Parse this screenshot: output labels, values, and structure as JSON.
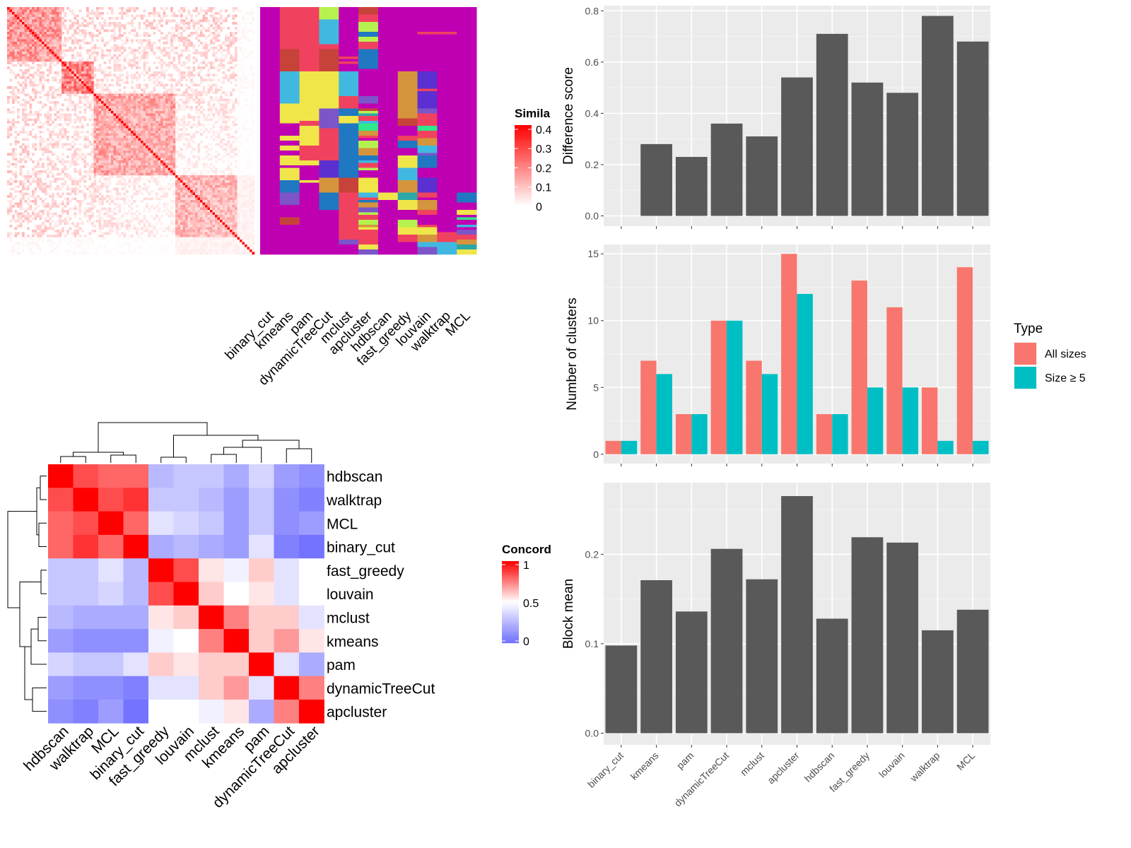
{
  "chart_data": [
    {
      "type": "heatmap",
      "panel": "item-similarity-heatmap-with-cluster-memberships",
      "n_items": 100,
      "legend": {
        "title": "Similarity",
        "visible_title": "Simila",
        "ticks": [
          "0.4",
          "0.3",
          "0.2",
          "0.1",
          "0"
        ],
        "range": [
          0,
          0.42
        ],
        "colors": [
          "#ffffff",
          "#ff0000"
        ]
      },
      "block_boundaries": [
        0,
        22,
        35,
        68,
        100
      ],
      "membership_columns": [
        "binary_cut",
        "kmeans",
        "pam",
        "dynamicTreeCut",
        "mclust",
        "apcluster",
        "hdbscan",
        "fast_greedy",
        "louvain",
        "walktrap",
        "MCL"
      ],
      "membership_segments": {
        "binary_cut": [
          [
            0,
            100,
            "#bf00b2"
          ]
        ],
        "kmeans": [
          [
            0,
            17,
            "#f0425f"
          ],
          [
            17,
            26,
            "#c7433a"
          ],
          [
            26,
            39,
            "#41b8e0"
          ],
          [
            39,
            47,
            "#f0e64a"
          ],
          [
            47,
            52,
            "#bf00b2"
          ],
          [
            52,
            54,
            "#f0e64a"
          ],
          [
            54,
            56,
            "#bf00b2"
          ],
          [
            56,
            58,
            "#f0e64a"
          ],
          [
            58,
            60,
            "#bf00b2"
          ],
          [
            60,
            64,
            "#f0e64a"
          ],
          [
            64,
            65,
            "#bf00b2"
          ],
          [
            65,
            70,
            "#f0e64a"
          ],
          [
            70,
            75,
            "#1f78c1"
          ],
          [
            75,
            80,
            "#7c55c9"
          ],
          [
            80,
            85,
            "#bf00b2"
          ],
          [
            85,
            88,
            "#c7433a"
          ],
          [
            88,
            100,
            "#bf00b2"
          ]
        ],
        "pam": [
          [
            0,
            26,
            "#f0425f"
          ],
          [
            26,
            46,
            "#f0e64a"
          ],
          [
            46,
            48,
            "#f0425f"
          ],
          [
            48,
            56,
            "#f0e64a"
          ],
          [
            56,
            62,
            "#f0425f"
          ],
          [
            62,
            64,
            "#f0e64a"
          ],
          [
            64,
            70,
            "#bf00b2"
          ],
          [
            70,
            71,
            "#f0e64a"
          ],
          [
            71,
            100,
            "#bf00b2"
          ]
        ],
        "dynamicTreeCut": [
          [
            0,
            5,
            "#b6f24f"
          ],
          [
            5,
            15,
            "#41b8e0"
          ],
          [
            15,
            17,
            "#f0425f"
          ],
          [
            17,
            26,
            "#c7433a"
          ],
          [
            26,
            41,
            "#f0e64a"
          ],
          [
            41,
            49,
            "#7c55c9"
          ],
          [
            49,
            62,
            "#f0425f"
          ],
          [
            62,
            69,
            "#5c2fd1"
          ],
          [
            69,
            75,
            "#d4953c"
          ],
          [
            75,
            82,
            "#1f78c1"
          ],
          [
            82,
            100,
            "#bf00b2"
          ]
        ],
        "mclust": [
          [
            0,
            20,
            "#bf00b2"
          ],
          [
            20,
            21,
            "#f0425f"
          ],
          [
            21,
            22,
            "#bf00b2"
          ],
          [
            22,
            23,
            "#f0425f"
          ],
          [
            23,
            26,
            "#bf00b2"
          ],
          [
            26,
            36,
            "#41b8e0"
          ],
          [
            36,
            41,
            "#f0425f"
          ],
          [
            41,
            44,
            "#1f78c1"
          ],
          [
            44,
            47,
            "#f0e64a"
          ],
          [
            47,
            55,
            "#1f78c1"
          ],
          [
            55,
            69,
            "#1f78c1"
          ],
          [
            69,
            75,
            "#c7433a"
          ],
          [
            75,
            94,
            "#f0425f"
          ],
          [
            94,
            96,
            "#7c55c9"
          ],
          [
            96,
            100,
            "#bf00b2"
          ]
        ],
        "apcluster": [
          [
            0,
            3,
            "#c7433a"
          ],
          [
            3,
            6,
            "#f0425f"
          ],
          [
            6,
            10,
            "#b6f24f"
          ],
          [
            10,
            12,
            "#1f78c1"
          ],
          [
            12,
            14,
            "#b6f24f"
          ],
          [
            14,
            17,
            "#f0425f"
          ],
          [
            17,
            25,
            "#1f78c1"
          ],
          [
            25,
            36,
            "#bf00b2"
          ],
          [
            36,
            39,
            "#7c55c9"
          ],
          [
            39,
            41,
            "#bf00b2"
          ],
          [
            41,
            42,
            "#c7433a"
          ],
          [
            42,
            43,
            "#b6f24f"
          ],
          [
            43,
            44,
            "#2ca7a7"
          ],
          [
            44,
            46,
            "#f0425f"
          ],
          [
            46,
            47,
            "#41b8e0"
          ],
          [
            47,
            50,
            "#2ee88a"
          ],
          [
            50,
            52,
            "#d4953c"
          ],
          [
            52,
            53,
            "#f0425f"
          ],
          [
            53,
            54,
            "#bf00b2"
          ],
          [
            54,
            57,
            "#b6f24f"
          ],
          [
            57,
            60,
            "#d4953c"
          ],
          [
            60,
            62,
            "#1f78c1"
          ],
          [
            62,
            63,
            "#41b8e0"
          ],
          [
            63,
            65,
            "#f0425f"
          ],
          [
            65,
            66,
            "#b6f24f"
          ],
          [
            66,
            69,
            "#bf00b2"
          ],
          [
            69,
            75,
            "#f0e64a"
          ],
          [
            75,
            77,
            "#41b8e0"
          ],
          [
            77,
            78,
            "#f0425f"
          ],
          [
            78,
            79,
            "#1f78c1"
          ],
          [
            79,
            81,
            "#d4953c"
          ],
          [
            81,
            83,
            "#7c55c9"
          ],
          [
            83,
            84,
            "#b6f24f"
          ],
          [
            84,
            86,
            "#f0425f"
          ],
          [
            86,
            88,
            "#b6f24f"
          ],
          [
            88,
            89,
            "#d4953c"
          ],
          [
            89,
            90,
            "#f0e64a"
          ],
          [
            90,
            96,
            "#f0425f"
          ],
          [
            96,
            98,
            "#f0e64a"
          ],
          [
            98,
            100,
            "#7c55c9"
          ]
        ],
        "hdbscan": [
          [
            0,
            75,
            "#bf00b2"
          ],
          [
            75,
            78,
            "#f0e64a"
          ],
          [
            78,
            100,
            "#bf00b2"
          ]
        ],
        "fast_greedy": [
          [
            0,
            26,
            "#bf00b2"
          ],
          [
            26,
            45,
            "#d4953c"
          ],
          [
            45,
            48,
            "#c7433a"
          ],
          [
            48,
            52,
            "#bf00b2"
          ],
          [
            52,
            54,
            "#f0425f"
          ],
          [
            54,
            57,
            "#1f78c1"
          ],
          [
            57,
            60,
            "#bf00b2"
          ],
          [
            60,
            65,
            "#f0e64a"
          ],
          [
            65,
            70,
            "#41b8e0"
          ],
          [
            70,
            75,
            "#d4953c"
          ],
          [
            75,
            78,
            "#2ca7a7"
          ],
          [
            78,
            82,
            "#f0e64a"
          ],
          [
            82,
            86,
            "#bf00b2"
          ],
          [
            86,
            89,
            "#b6f24f"
          ],
          [
            89,
            92,
            "#f0e64a"
          ],
          [
            92,
            95,
            "#f0425f"
          ],
          [
            95,
            100,
            "#bf00b2"
          ]
        ],
        "louvain": [
          [
            0,
            10,
            "#bf00b2"
          ],
          [
            10,
            11,
            "#f0425f"
          ],
          [
            11,
            26,
            "#bf00b2"
          ],
          [
            26,
            33,
            "#5c2fd1"
          ],
          [
            33,
            34,
            "#f0425f"
          ],
          [
            34,
            41,
            "#5c2fd1"
          ],
          [
            41,
            43,
            "#7c55c9"
          ],
          [
            43,
            48,
            "#f0425f"
          ],
          [
            48,
            50,
            "#2ee88a"
          ],
          [
            50,
            53,
            "#f0425f"
          ],
          [
            53,
            56,
            "#d4953c"
          ],
          [
            56,
            59,
            "#41b8e0"
          ],
          [
            59,
            60,
            "#7c55c9"
          ],
          [
            60,
            65,
            "#1f78c1"
          ],
          [
            65,
            69,
            "#bf00b2"
          ],
          [
            69,
            75,
            "#5c2fd1"
          ],
          [
            75,
            77,
            "#f0425f"
          ],
          [
            77,
            78,
            "#bf00b2"
          ],
          [
            78,
            82,
            "#d4953c"
          ],
          [
            82,
            84,
            "#f0425f"
          ],
          [
            84,
            88,
            "#bf00b2"
          ],
          [
            88,
            89,
            "#f0425f"
          ],
          [
            89,
            92,
            "#f0e64a"
          ],
          [
            92,
            95,
            "#d4953c"
          ],
          [
            95,
            97,
            "#41b8e0"
          ],
          [
            97,
            100,
            "#7c55c9"
          ]
        ],
        "walktrap": [
          [
            0,
            10,
            "#bf00b2"
          ],
          [
            10,
            11,
            "#f0425f"
          ],
          [
            11,
            91,
            "#bf00b2"
          ],
          [
            91,
            95,
            "#f0425f"
          ],
          [
            95,
            100,
            "#41b8e0"
          ]
        ],
        "MCL": [
          [
            0,
            75,
            "#bf00b2"
          ],
          [
            75,
            79,
            "#1f78c1"
          ],
          [
            79,
            82,
            "#bf00b2"
          ],
          [
            82,
            84,
            "#f0e64a"
          ],
          [
            84,
            85,
            "#bf00b2"
          ],
          [
            85,
            86,
            "#2ee88a"
          ],
          [
            86,
            88,
            "#bf00b2"
          ],
          [
            88,
            89,
            "#41b8e0"
          ],
          [
            89,
            90,
            "#bf00b2"
          ],
          [
            90,
            92,
            "#7c55c9"
          ],
          [
            92,
            94,
            "#f0425f"
          ],
          [
            94,
            96,
            "#d4953c"
          ],
          [
            96,
            98,
            "#2ca7a7"
          ],
          [
            98,
            100,
            "#f0e64a"
          ]
        ]
      }
    },
    {
      "type": "heatmap",
      "panel": "method-concordance-heatmap",
      "rows": [
        "hdbscan",
        "walktrap",
        "MCL",
        "binary_cut",
        "fast_greedy",
        "louvain",
        "mclust",
        "kmeans",
        "pam",
        "dynamicTreeCut",
        "apcluster"
      ],
      "columns": [
        "hdbscan",
        "walktrap",
        "MCL",
        "binary_cut",
        "fast_greedy",
        "louvain",
        "mclust",
        "kmeans",
        "pam",
        "dynamicTreeCut",
        "apcluster"
      ],
      "values": [
        [
          1.0,
          0.85,
          0.8,
          0.8,
          0.25,
          0.3,
          0.3,
          0.2,
          0.35,
          0.15,
          0.1
        ],
        [
          0.85,
          1.0,
          0.85,
          0.9,
          0.3,
          0.3,
          0.25,
          0.15,
          0.3,
          0.1,
          0.05
        ],
        [
          0.8,
          0.85,
          1.0,
          0.8,
          0.4,
          0.35,
          0.3,
          0.15,
          0.3,
          0.1,
          0.15
        ],
        [
          0.8,
          0.9,
          0.8,
          1.0,
          0.2,
          0.25,
          0.2,
          0.15,
          0.4,
          0.05,
          0.0
        ],
        [
          0.3,
          0.3,
          0.4,
          0.25,
          1.0,
          0.85,
          0.55,
          0.45,
          0.6,
          0.4,
          0.5
        ],
        [
          0.3,
          0.3,
          0.35,
          0.25,
          0.85,
          1.0,
          0.6,
          0.5,
          0.55,
          0.4,
          0.5
        ],
        [
          0.25,
          0.2,
          0.2,
          0.2,
          0.55,
          0.6,
          1.0,
          0.75,
          0.6,
          0.6,
          0.4
        ],
        [
          0.15,
          0.1,
          0.1,
          0.1,
          0.45,
          0.5,
          0.75,
          1.0,
          0.6,
          0.7,
          0.55
        ],
        [
          0.35,
          0.3,
          0.3,
          0.4,
          0.6,
          0.55,
          0.6,
          0.6,
          1.0,
          0.4,
          0.2
        ],
        [
          0.15,
          0.1,
          0.1,
          0.05,
          0.4,
          0.4,
          0.6,
          0.7,
          0.4,
          1.0,
          0.75
        ],
        [
          0.1,
          0.05,
          0.15,
          0.0,
          0.5,
          0.5,
          0.45,
          0.55,
          0.2,
          0.75,
          1.0
        ]
      ],
      "legend": {
        "title": "Concordance",
        "visible_title": "Concord",
        "ticks": [
          "1",
          "0.5",
          "0"
        ],
        "colors": [
          "#0000ff",
          "#ffffff",
          "#ff0000"
        ]
      },
      "dendrogram": "hierarchical clustering of methods (rows and columns)"
    },
    {
      "type": "bar",
      "panel": "difference-score",
      "categories": [
        "binary_cut",
        "kmeans",
        "pam",
        "dynamicTreeCut",
        "mclust",
        "apcluster",
        "hdbscan",
        "fast_greedy",
        "louvain",
        "walktrap",
        "MCL"
      ],
      "values": [
        0.0,
        0.28,
        0.23,
        0.36,
        0.31,
        0.54,
        0.71,
        0.52,
        0.48,
        0.78,
        0.68
      ],
      "ylabel": "Difference score",
      "yticks": [
        "0.0",
        "0.2",
        "0.4",
        "0.6",
        "0.8"
      ],
      "ylim": [
        -0.04,
        0.82
      ],
      "color": "#595959",
      "grid": true
    },
    {
      "type": "bar",
      "panel": "number-of-clusters",
      "categories": [
        "binary_cut",
        "kmeans",
        "pam",
        "dynamicTreeCut",
        "mclust",
        "apcluster",
        "hdbscan",
        "fast_greedy",
        "louvain",
        "walktrap",
        "MCL"
      ],
      "series": [
        {
          "name": "All sizes",
          "values": [
            1,
            7,
            3,
            10,
            7,
            15,
            3,
            13,
            11,
            5,
            14
          ],
          "color": "#f8766d"
        },
        {
          "name": "Size ≥ 5",
          "values": [
            1,
            6,
            3,
            10,
            6,
            12,
            3,
            5,
            5,
            1,
            1
          ],
          "color": "#00bfc4"
        }
      ],
      "ylabel": "Number of clusters",
      "yticks": [
        "0",
        "5",
        "10",
        "15"
      ],
      "ylim": [
        -0.7,
        15.7
      ],
      "legend": {
        "title": "Type",
        "placement": "right"
      },
      "grid": true
    },
    {
      "type": "bar",
      "panel": "block-mean",
      "categories": [
        "binary_cut",
        "kmeans",
        "pam",
        "dynamicTreeCut",
        "mclust",
        "apcluster",
        "hdbscan",
        "fast_greedy",
        "louvain",
        "walktrap",
        "MCL"
      ],
      "values": [
        0.098,
        0.171,
        0.136,
        0.206,
        0.172,
        0.265,
        0.128,
        0.219,
        0.213,
        0.115,
        0.138
      ],
      "ylabel": "Block mean",
      "yticks": [
        "0.0",
        "0.1",
        "0.2"
      ],
      "ylim": [
        -0.013,
        0.28
      ],
      "color": "#595959",
      "grid": true
    }
  ]
}
